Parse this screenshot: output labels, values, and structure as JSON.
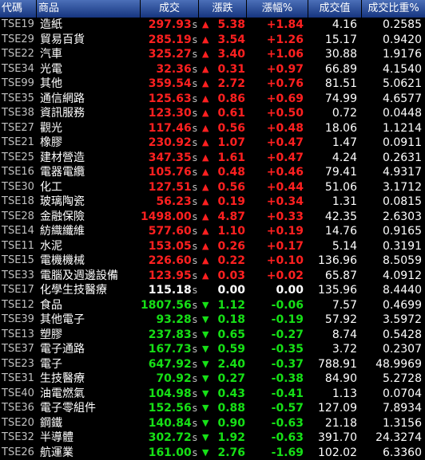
{
  "headers": [
    "代碼",
    "商品",
    "成交",
    "漲跌",
    "漲幅%",
    "成交值",
    "成交比重%"
  ],
  "price_suffix": "s",
  "colors": {
    "up": "#ff2020",
    "down": "#16e016",
    "flat": "#ffffff"
  },
  "rows": [
    {
      "code": "TSE19",
      "name": "造紙",
      "price": "297.93",
      "dir": "up",
      "change": "5.38",
      "pct": "+1.84",
      "amount": "4.16",
      "ratio": "0.2585"
    },
    {
      "code": "TSE29",
      "name": "貿易百貨",
      "price": "285.19",
      "dir": "up",
      "change": "3.54",
      "pct": "+1.26",
      "amount": "15.17",
      "ratio": "0.9420"
    },
    {
      "code": "TSE22",
      "name": "汽車",
      "price": "325.27",
      "dir": "up",
      "change": "3.40",
      "pct": "+1.06",
      "amount": "30.88",
      "ratio": "1.9176"
    },
    {
      "code": "TSE34",
      "name": "光電",
      "price": "32.36",
      "dir": "up",
      "change": "0.31",
      "pct": "+0.97",
      "amount": "66.89",
      "ratio": "4.1540"
    },
    {
      "code": "TSE99",
      "name": "其他",
      "price": "359.54",
      "dir": "up",
      "change": "2.72",
      "pct": "+0.76",
      "amount": "81.51",
      "ratio": "5.0621"
    },
    {
      "code": "TSE35",
      "name": "通信網路",
      "price": "125.63",
      "dir": "up",
      "change": "0.86",
      "pct": "+0.69",
      "amount": "74.99",
      "ratio": "4.6577"
    },
    {
      "code": "TSE38",
      "name": "資訊服務",
      "price": "123.30",
      "dir": "up",
      "change": "0.61",
      "pct": "+0.50",
      "amount": "0.72",
      "ratio": "0.0448"
    },
    {
      "code": "TSE27",
      "name": "觀光",
      "price": "117.46",
      "dir": "up",
      "change": "0.56",
      "pct": "+0.48",
      "amount": "18.06",
      "ratio": "1.1214"
    },
    {
      "code": "TSE21",
      "name": "橡膠",
      "price": "230.92",
      "dir": "up",
      "change": "1.07",
      "pct": "+0.47",
      "amount": "1.47",
      "ratio": "0.0911"
    },
    {
      "code": "TSE25",
      "name": "建材營造",
      "price": "347.35",
      "dir": "up",
      "change": "1.61",
      "pct": "+0.47",
      "amount": "4.24",
      "ratio": "0.2631"
    },
    {
      "code": "TSE16",
      "name": "電器電纜",
      "price": "105.76",
      "dir": "up",
      "change": "0.48",
      "pct": "+0.46",
      "amount": "79.41",
      "ratio": "4.9317"
    },
    {
      "code": "TSE30",
      "name": "化工",
      "price": "127.51",
      "dir": "up",
      "change": "0.56",
      "pct": "+0.44",
      "amount": "51.06",
      "ratio": "3.1712"
    },
    {
      "code": "TSE18",
      "name": "玻璃陶瓷",
      "price": "56.23",
      "dir": "up",
      "change": "0.19",
      "pct": "+0.34",
      "amount": "1.31",
      "ratio": "0.0815"
    },
    {
      "code": "TSE28",
      "name": "金融保險",
      "price": "1498.00",
      "dir": "up",
      "change": "4.87",
      "pct": "+0.33",
      "amount": "42.35",
      "ratio": "2.6303"
    },
    {
      "code": "TSE14",
      "name": "紡織纖維",
      "price": "577.60",
      "dir": "up",
      "change": "1.10",
      "pct": "+0.19",
      "amount": "14.76",
      "ratio": "0.9165"
    },
    {
      "code": "TSE11",
      "name": "水泥",
      "price": "153.05",
      "dir": "up",
      "change": "0.26",
      "pct": "+0.17",
      "amount": "5.14",
      "ratio": "0.3191"
    },
    {
      "code": "TSE15",
      "name": "電機機械",
      "price": "226.60",
      "dir": "up",
      "change": "0.22",
      "pct": "+0.10",
      "amount": "136.96",
      "ratio": "8.5059"
    },
    {
      "code": "TSE33",
      "name": "電腦及週邊設備",
      "price": "123.95",
      "dir": "up",
      "change": "0.03",
      "pct": "+0.02",
      "amount": "65.87",
      "ratio": "4.0912"
    },
    {
      "code": "TSE17",
      "name": "化學生技醫療",
      "price": "115.18",
      "dir": "flat",
      "change": "0.00",
      "pct": "0.00",
      "amount": "135.96",
      "ratio": "8.4440"
    },
    {
      "code": "TSE12",
      "name": "食品",
      "price": "1807.56",
      "dir": "down",
      "change": "1.12",
      "pct": "-0.06",
      "amount": "7.57",
      "ratio": "0.4699"
    },
    {
      "code": "TSE39",
      "name": "其他電子",
      "price": "93.28",
      "dir": "down",
      "change": "0.18",
      "pct": "-0.19",
      "amount": "57.92",
      "ratio": "3.5972"
    },
    {
      "code": "TSE13",
      "name": "塑膠",
      "price": "237.83",
      "dir": "down",
      "change": "0.65",
      "pct": "-0.27",
      "amount": "8.74",
      "ratio": "0.5428"
    },
    {
      "code": "TSE37",
      "name": "電子通路",
      "price": "167.73",
      "dir": "down",
      "change": "0.59",
      "pct": "-0.35",
      "amount": "3.72",
      "ratio": "0.2307"
    },
    {
      "code": "TSE23",
      "name": "電子",
      "price": "647.92",
      "dir": "down",
      "change": "2.40",
      "pct": "-0.37",
      "amount": "788.91",
      "ratio": "48.9969"
    },
    {
      "code": "TSE31",
      "name": "生技醫療",
      "price": "70.92",
      "dir": "down",
      "change": "0.27",
      "pct": "-0.38",
      "amount": "84.90",
      "ratio": "5.2728"
    },
    {
      "code": "TSE40",
      "name": "油電燃氣",
      "price": "104.98",
      "dir": "down",
      "change": "0.43",
      "pct": "-0.41",
      "amount": "1.13",
      "ratio": "0.0704"
    },
    {
      "code": "TSE36",
      "name": "電子零組件",
      "price": "152.56",
      "dir": "down",
      "change": "0.88",
      "pct": "-0.57",
      "amount": "127.09",
      "ratio": "7.8934"
    },
    {
      "code": "TSE20",
      "name": "鋼鐵",
      "price": "140.84",
      "dir": "down",
      "change": "0.90",
      "pct": "-0.63",
      "amount": "21.18",
      "ratio": "1.3156"
    },
    {
      "code": "TSE32",
      "name": "半導體",
      "price": "302.72",
      "dir": "down",
      "change": "1.92",
      "pct": "-0.63",
      "amount": "391.70",
      "ratio": "24.3274"
    },
    {
      "code": "TSE26",
      "name": "航運業",
      "price": "161.00",
      "dir": "down",
      "change": "2.76",
      "pct": "-1.69",
      "amount": "102.02",
      "ratio": "6.3360"
    }
  ]
}
